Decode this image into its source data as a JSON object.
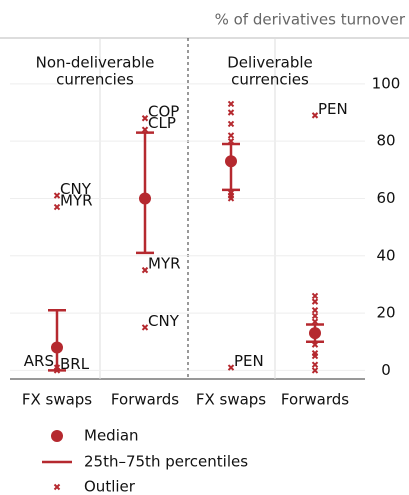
{
  "chart_data": {
    "type": "range",
    "title": "% of derivatives turnover",
    "color": "#b5292f",
    "panels": [
      {
        "title": [
          "Non-deliverable",
          "currencies"
        ]
      },
      {
        "title": [
          "Deliverable",
          "currencies"
        ]
      }
    ],
    "categories": [
      "FX swaps",
      "Forwards",
      "FX swaps",
      "Forwards"
    ],
    "median": [
      8,
      60,
      73,
      13
    ],
    "p25": [
      0,
      41,
      63,
      10
    ],
    "p75": [
      21,
      83,
      79,
      16
    ],
    "outliers": [
      [
        {
          "value": 1,
          "label": "ARS"
        },
        {
          "value": 0,
          "label": "BRL"
        },
        {
          "value": 61,
          "label": "CNY"
        },
        {
          "value": 57,
          "label": "MYR"
        }
      ],
      [
        {
          "value": 88,
          "label": "COP"
        },
        {
          "value": 84,
          "label": "CLP"
        },
        {
          "value": 35,
          "label": "MYR"
        },
        {
          "value": 15,
          "label": "CNY"
        }
      ],
      [
        {
          "value": 93
        },
        {
          "value": 90
        },
        {
          "value": 86
        },
        {
          "value": 82
        },
        {
          "value": 80
        },
        {
          "value": 62
        },
        {
          "value": 61
        },
        {
          "value": 60
        },
        {
          "value": 1,
          "label": "PEN"
        }
      ],
      [
        {
          "value": 89,
          "label": "PEN"
        },
        {
          "value": 26
        },
        {
          "value": 24
        },
        {
          "value": 21
        },
        {
          "value": 19
        },
        {
          "value": 17
        },
        {
          "value": 9
        },
        {
          "value": 6
        },
        {
          "value": 5
        },
        {
          "value": 2
        },
        {
          "value": 0
        }
      ]
    ],
    "ylim": [
      -3,
      116
    ],
    "yticks": [
      0,
      20,
      40,
      60,
      80,
      100
    ],
    "legend": {
      "median": "Median",
      "range": "25th–75th percentiles",
      "outlier": "Outlier"
    }
  }
}
